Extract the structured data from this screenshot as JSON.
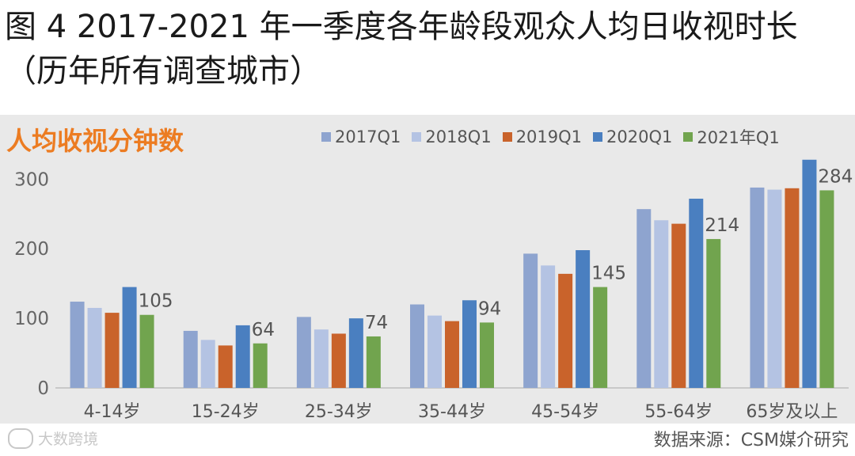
{
  "title": "图 4 2017-2021 年一季度各年龄段观众人均日收视时长（历年所有调查城市）",
  "source": "数据来源：CSM媒介研究",
  "watermark": "大数跨境",
  "colors": {
    "panel": "#e9e9e9",
    "2017Q1": "#8ea4cf",
    "2018Q1": "#b4c3e3",
    "2019Q1": "#c9632b",
    "2020Q1": "#4a7fc0",
    "2021年Q1": "#71a44e"
  },
  "chart_data": {
    "type": "bar",
    "title": "人均收视分钟数",
    "xlabel": "",
    "ylabel": "",
    "ylim": [
      0,
      330
    ],
    "yticks": [
      0,
      100,
      200,
      300
    ],
    "legend_position": "top-right",
    "grid": false,
    "categories": [
      "4-14岁",
      "15-24岁",
      "25-34岁",
      "35-44岁",
      "45-54岁",
      "55-64岁",
      "65岁及以上"
    ],
    "series": [
      {
        "name": "2017Q1",
        "values": [
          124,
          82,
          102,
          120,
          193,
          257,
          288
        ]
      },
      {
        "name": "2018Q1",
        "values": [
          115,
          69,
          84,
          104,
          176,
          241,
          285
        ]
      },
      {
        "name": "2019Q1",
        "values": [
          108,
          61,
          78,
          96,
          164,
          236,
          287
        ]
      },
      {
        "name": "2020Q1",
        "values": [
          145,
          90,
          100,
          126,
          198,
          272,
          328
        ]
      },
      {
        "name": "2021年Q1",
        "values": [
          105,
          64,
          74,
          94,
          145,
          214,
          284
        ]
      }
    ],
    "data_labels": {
      "series": "2021年Q1",
      "values": [
        105,
        64,
        74,
        94,
        145,
        214,
        284
      ]
    }
  }
}
